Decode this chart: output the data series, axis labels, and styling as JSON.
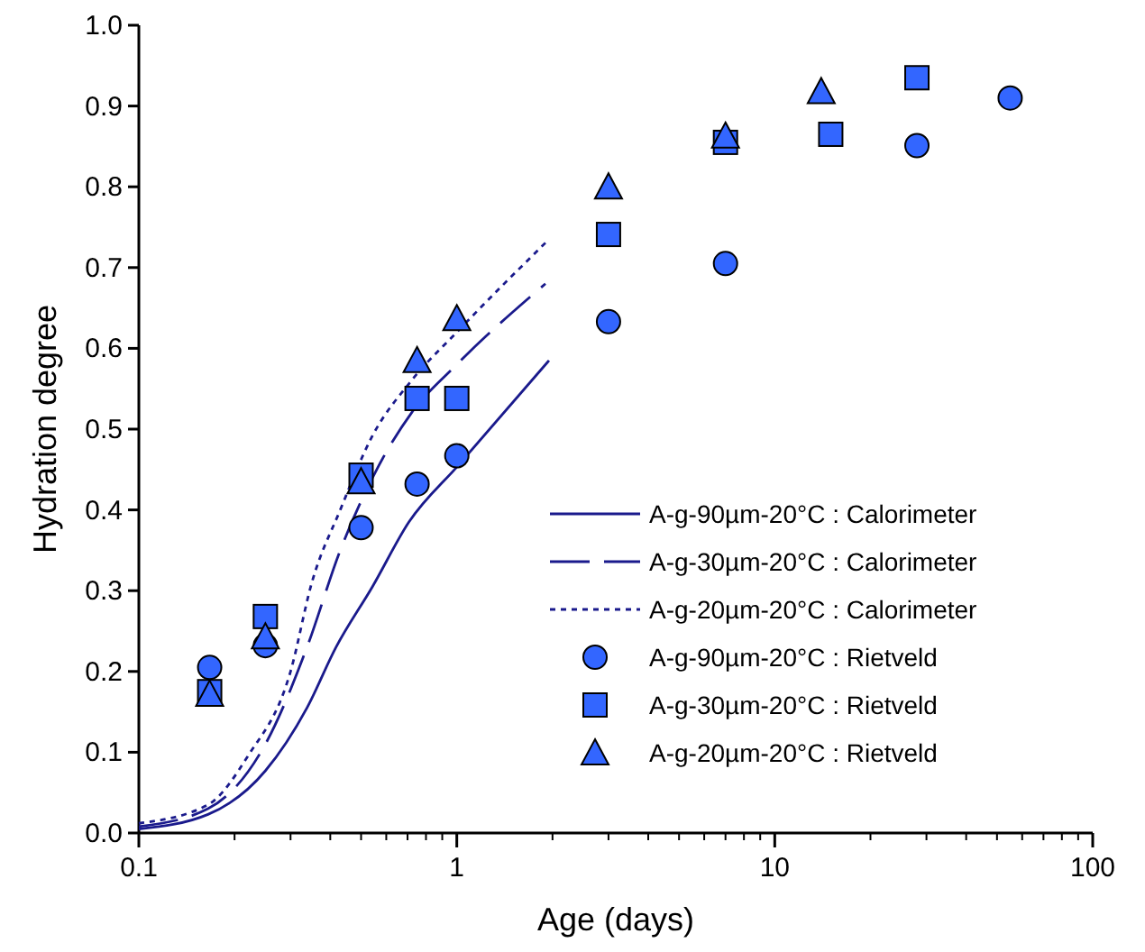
{
  "chart_data": {
    "type": "line",
    "xlabel": "Age (days)",
    "ylabel": "Hydration degree",
    "log": "x",
    "xlim": [
      0.1,
      100
    ],
    "xticks": [
      0.1,
      1,
      10,
      100
    ],
    "ylim": [
      0,
      1
    ],
    "yticks": [
      {
        "value": 0,
        "label": "0.0"
      },
      0.1,
      0.2,
      0.3,
      0.4,
      0.5,
      0.6,
      0.7,
      0.8,
      0.9,
      {
        "value": 1,
        "label": "1.0"
      }
    ],
    "grid": false,
    "legend": "bottom right",
    "series": [
      {
        "name": "A-g-90µm-20°C :  Calorimeter",
        "line_style": "solid",
        "color": "#1a1a8c",
        "x": [
          0.1,
          0.165,
          0.25,
          0.338,
          0.417,
          0.543,
          0.707,
          1.01,
          1.95
        ],
        "values": [
          0.005,
          0.023,
          0.077,
          0.155,
          0.23,
          0.305,
          0.385,
          0.455,
          0.585
        ]
      },
      {
        "name": "A-g-30µm-20°C : Calorimeter",
        "line_style": "dashed",
        "color": "#1a1a8c",
        "x": [
          0.1,
          0.165,
          0.25,
          0.338,
          0.43,
          0.56,
          0.72,
          1.0,
          1.9
        ],
        "values": [
          0.008,
          0.03,
          0.11,
          0.23,
          0.35,
          0.45,
          0.52,
          0.58,
          0.68
        ]
      },
      {
        "name": "A-g-20µm-20°C : Calorimeter",
        "line_style": "dotted",
        "color": "#1a1a8c",
        "x": [
          0.1,
          0.165,
          0.22,
          0.3,
          0.35,
          0.43,
          0.54,
          0.72,
          1.0,
          1.95
        ],
        "values": [
          0.012,
          0.035,
          0.095,
          0.2,
          0.31,
          0.4,
          0.49,
          0.56,
          0.62,
          0.735
        ]
      },
      {
        "name": "A-g-90µm-20°C : Rietveld",
        "type": "scatter",
        "marker": "circle",
        "color": "#3366ff",
        "x": [
          0.167,
          0.25,
          0.5,
          0.75,
          1,
          3,
          7,
          28,
          55
        ],
        "values": [
          0.205,
          0.232,
          0.378,
          0.432,
          0.467,
          0.633,
          0.705,
          0.851,
          0.91
        ]
      },
      {
        "name": "A-g-30µm-20°C : Rietveld",
        "type": "scatter",
        "marker": "square",
        "color": "#3366ff",
        "x": [
          0.167,
          0.25,
          0.5,
          0.75,
          1,
          3,
          7,
          15,
          28
        ],
        "values": [
          0.175,
          0.268,
          0.443,
          0.538,
          0.538,
          0.741,
          0.855,
          0.865,
          0.935
        ]
      },
      {
        "name": "A-g-20µm-20°C : Rietveld",
        "type": "scatter",
        "marker": "triangle",
        "color": "#3366ff",
        "x": [
          0.167,
          0.25,
          0.5,
          0.75,
          1,
          3,
          7,
          14
        ],
        "values": [
          0.172,
          0.243,
          0.435,
          0.585,
          0.637,
          0.8,
          0.863,
          0.918
        ]
      }
    ]
  }
}
